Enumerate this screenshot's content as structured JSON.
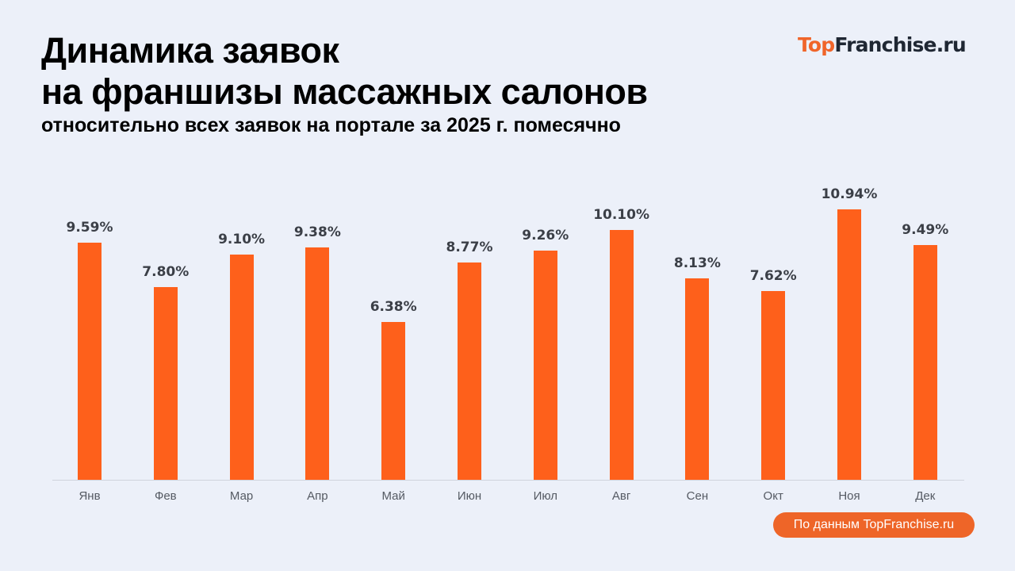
{
  "header": {
    "title_line1": "Динамика заявок",
    "title_line2": "на франшизы массажных салонов",
    "subtitle": "относительно всех заявок на портале за 2025 г. помесячно"
  },
  "logo": {
    "part1": "Top",
    "part2": "Franchise.ru"
  },
  "footer": {
    "source": "По данным TopFranchise.ru"
  },
  "colors": {
    "bar": "#fe601b",
    "background": "#ecf0f9",
    "badge": "#ee6528"
  },
  "chart_data": {
    "type": "bar",
    "title": "Динамика заявок на франшизы массажных салонов",
    "subtitle": "относительно всех заявок на портале за 2025 г. помесячно",
    "xlabel": "",
    "ylabel": "",
    "categories": [
      "Янв",
      "Фев",
      "Мар",
      "Апр",
      "Май",
      "Июн",
      "Июл",
      "Авг",
      "Сен",
      "Окт",
      "Ноя",
      "Дек"
    ],
    "values": [
      9.59,
      7.8,
      9.1,
      9.38,
      6.38,
      8.77,
      9.26,
      10.1,
      8.13,
      7.62,
      10.94,
      9.49
    ],
    "labels": [
      "9.59%",
      "7.80%",
      "9.10%",
      "9.38%",
      "6.38%",
      "8.77%",
      "9.26%",
      "10.10%",
      "8.13%",
      "7.62%",
      "10.94%",
      "9.49%"
    ],
    "unit": "%",
    "ylim": [
      0,
      12
    ],
    "grid": false,
    "legend": false
  }
}
